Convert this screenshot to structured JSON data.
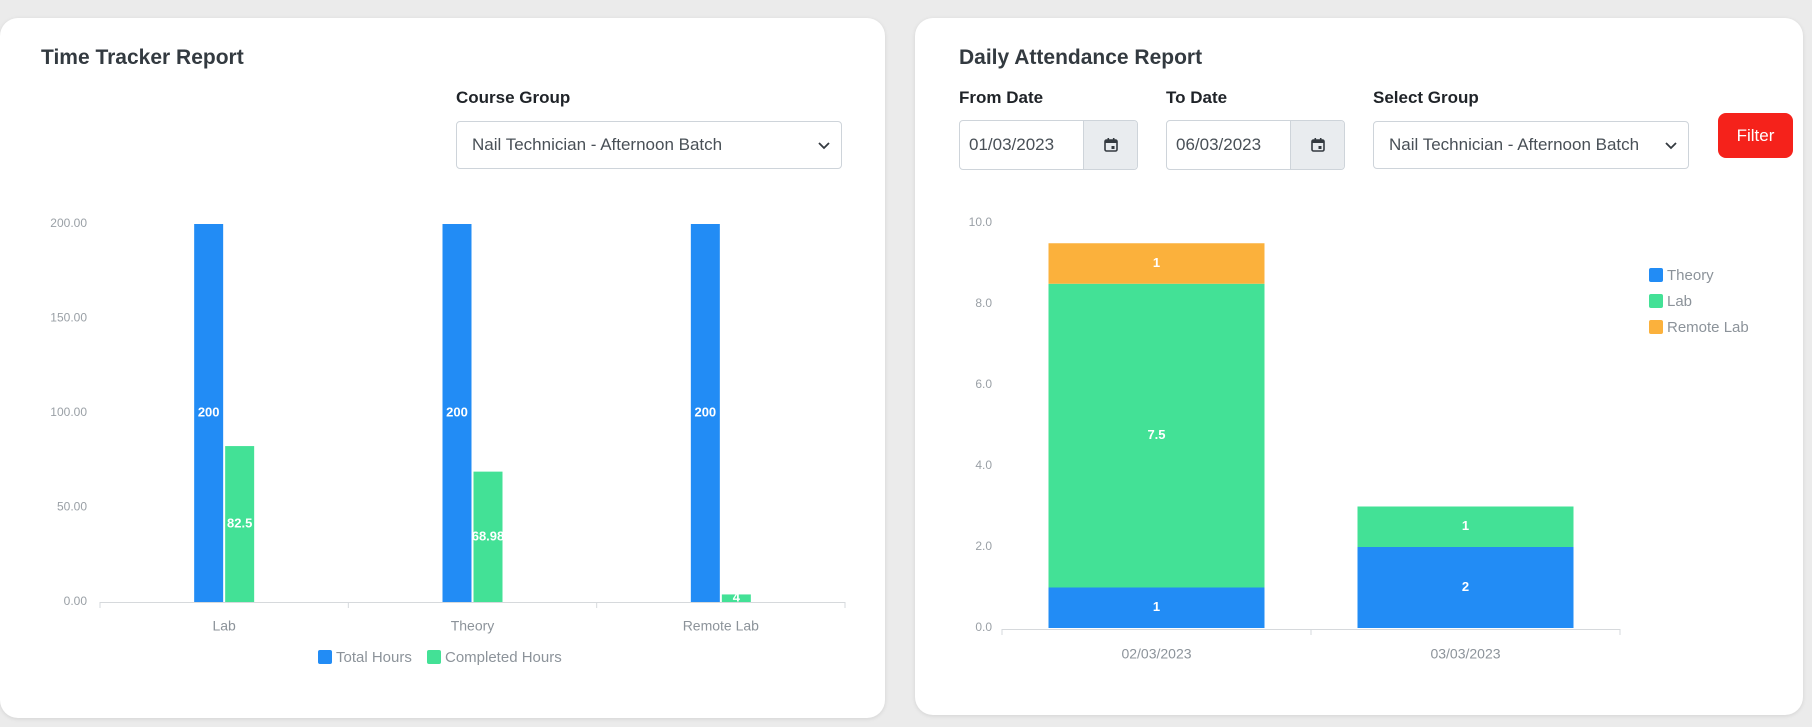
{
  "time_tracker": {
    "title": "Time Tracker Report",
    "course_group_label": "Course Group",
    "course_group_value": "Nail Technician - Afternoon Batch"
  },
  "attendance": {
    "title": "Daily Attendance Report",
    "from_label": "From Date",
    "from_value": "01/03/2023",
    "to_label": "To Date",
    "to_value": "06/03/2023",
    "group_label": "Select Group",
    "group_value": "Nail Technician - Afternoon Batch",
    "filter_label": "Filter"
  },
  "colors": {
    "blue": "#228cf5",
    "green": "#43e196",
    "orange": "#fbb13c",
    "filter_red": "#f5221b"
  },
  "icons": {
    "select_arrow": "chevron-down-icon",
    "date_picker": "calendar-icon"
  },
  "chart_data": [
    {
      "type": "bar",
      "categories": [
        "Lab",
        "Theory",
        "Remote Lab"
      ],
      "series": [
        {
          "name": "Total Hours",
          "values": [
            200,
            200,
            200
          ],
          "labels": [
            "200",
            "200",
            "200"
          ]
        },
        {
          "name": "Completed Hours",
          "values": [
            82.5,
            68.98,
            4
          ],
          "labels": [
            "82.5",
            "68.98",
            "4"
          ]
        }
      ],
      "yticks": [
        "0.00",
        "50.00",
        "100.00",
        "150.00",
        "200.00"
      ],
      "ylim": [
        0,
        200
      ],
      "legend": "bottom"
    },
    {
      "type": "bar",
      "stacked": true,
      "categories": [
        "02/03/2023",
        "03/03/2023"
      ],
      "series": [
        {
          "name": "Theory",
          "values": [
            1,
            2
          ]
        },
        {
          "name": "Lab",
          "values": [
            7.5,
            1
          ]
        },
        {
          "name": "Remote Lab",
          "values": [
            1,
            0
          ]
        }
      ],
      "yticks": [
        "0.0",
        "2.0",
        "4.0",
        "6.0",
        "8.0",
        "10.0"
      ],
      "ylim": [
        0,
        10
      ],
      "legend": "right"
    }
  ]
}
